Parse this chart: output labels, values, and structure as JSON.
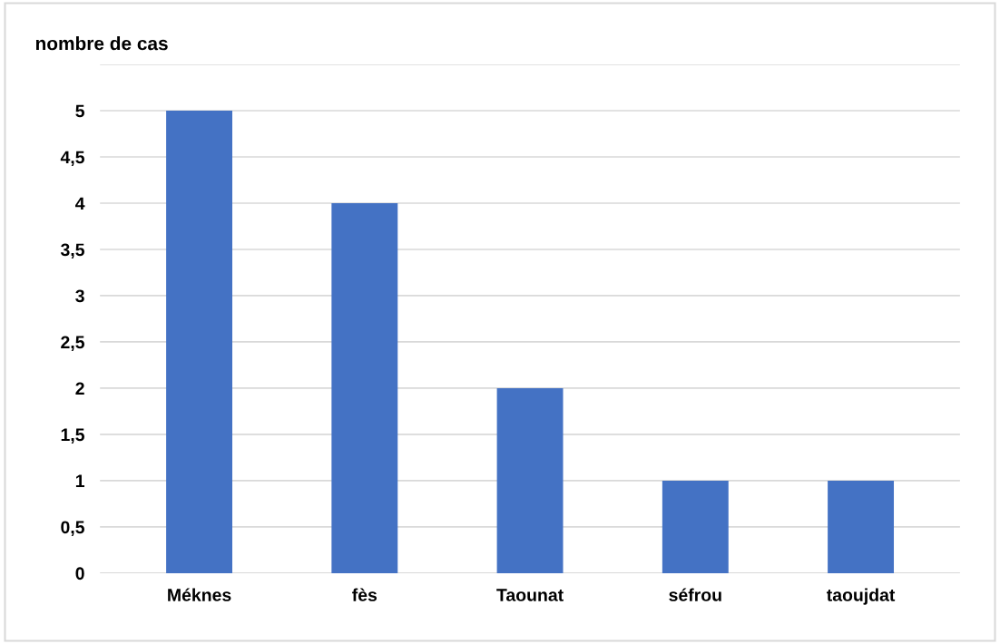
{
  "chart_data": {
    "type": "bar",
    "ylabel": "nombre de cas",
    "categories": [
      "Méknes",
      "fès",
      "Taounat",
      "séfrou",
      "taoujdat"
    ],
    "values": [
      5,
      4,
      2,
      1,
      1
    ],
    "color": "#4472c4",
    "ylim": [
      0,
      5.5
    ],
    "yticks": [
      0,
      {
        "value": 0.5,
        "label": "0,5"
      },
      1,
      {
        "value": 1.5,
        "label": "1,5"
      },
      2,
      {
        "value": 2.5,
        "label": "2,5"
      },
      3,
      {
        "value": 3.5,
        "label": "3,5"
      },
      4,
      {
        "value": 4.5,
        "label": "4,5"
      },
      5,
      {
        "value": 5.5,
        "label": null
      }
    ],
    "grid": "y"
  }
}
